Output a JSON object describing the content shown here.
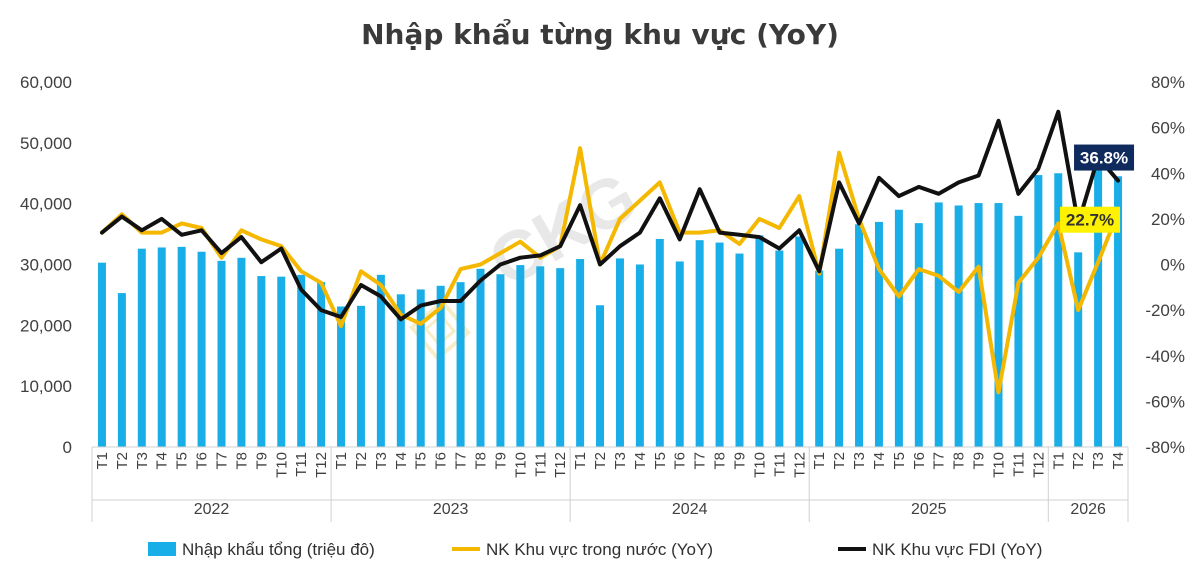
{
  "chart_data": {
    "type": "bar+line",
    "title": "Nhập khẩu từng khu vực (YoY)",
    "categories": [
      "T1",
      "T2",
      "T3",
      "T4",
      "T5",
      "T6",
      "T7",
      "T8",
      "T9",
      "T10",
      "T11",
      "T12",
      "T1",
      "T2",
      "T3",
      "T4",
      "T5",
      "T6",
      "T7",
      "T8",
      "T9",
      "T10",
      "T11",
      "T12",
      "T1",
      "T2",
      "T3",
      "T4",
      "T5",
      "T6",
      "T7",
      "T8",
      "T9",
      "T10",
      "T11",
      "T12",
      "T1",
      "T2",
      "T3",
      "T4",
      "T5",
      "T6",
      "T7",
      "T8",
      "T9",
      "T10",
      "T11",
      "T12",
      "T1",
      "T2",
      "T3",
      "T4"
    ],
    "groups": [
      {
        "label": "2022",
        "count": 12
      },
      {
        "label": "2023",
        "count": 12
      },
      {
        "label": "2024",
        "count": 12
      },
      {
        "label": "2025",
        "count": 12
      },
      {
        "label": "2026",
        "count": 4
      }
    ],
    "y_left": {
      "min": 0,
      "max": 60000,
      "step": 10000,
      "ticks": [
        "0",
        "10,000",
        "20,000",
        "30,000",
        "40,000",
        "50,000",
        "60,000"
      ]
    },
    "y_right": {
      "min": -80,
      "max": 80,
      "step": 20,
      "ticks": [
        "-80%",
        "-60%",
        "-40%",
        "-20%",
        "0%",
        "20%",
        "40%",
        "60%",
        "80%"
      ]
    },
    "series": [
      {
        "name": "Nhập khẩu tổng (triệu đô)",
        "type": "bar",
        "axis": "left",
        "color": "#1aaee8",
        "values": [
          30300,
          25300,
          32600,
          32800,
          32900,
          32100,
          30600,
          31100,
          28100,
          28000,
          28300,
          27100,
          23100,
          23200,
          28300,
          25100,
          25900,
          26500,
          27100,
          29300,
          28400,
          29900,
          29700,
          29400,
          30900,
          23300,
          31000,
          30000,
          34200,
          30500,
          34000,
          33600,
          31800,
          34800,
          32300,
          34600,
          29000,
          32600,
          36600,
          37000,
          39000,
          36800,
          40200,
          39700,
          40100,
          40100,
          38000,
          44700,
          45000,
          32000,
          46000,
          44500
        ]
      },
      {
        "name": "NK Khu vực trong nước (YoY)",
        "type": "line",
        "axis": "right",
        "color": "#f5b800",
        "values": [
          14,
          22,
          14,
          14,
          18,
          16,
          3,
          15,
          11,
          8,
          -3,
          -8,
          -27,
          -3,
          -9,
          -22,
          -26,
          -19,
          -2,
          0,
          5,
          10,
          3,
          8,
          51,
          0,
          20,
          28,
          36,
          14,
          14,
          15,
          9,
          20,
          16,
          30,
          -4,
          49,
          20,
          -2,
          -14,
          -2,
          -5,
          -12,
          -1,
          -56,
          -8,
          3,
          18,
          -20,
          1,
          22.7
        ]
      },
      {
        "name": "NK Khu vực FDI (YoY)",
        "type": "line",
        "axis": "right",
        "color": "#111111",
        "values": [
          14,
          21,
          15,
          20,
          13,
          15,
          5,
          12,
          1,
          7,
          -11,
          -20,
          -23,
          -9,
          -14,
          -24,
          -18,
          -16,
          -16,
          -7,
          0,
          3,
          4,
          8,
          26,
          0,
          8,
          14,
          29,
          11,
          33,
          14,
          13,
          12,
          7,
          15,
          -3,
          36,
          18,
          38,
          30,
          34,
          31,
          36,
          39,
          63,
          31,
          42,
          67,
          18,
          47,
          36.8
        ]
      }
    ],
    "data_labels": [
      {
        "series": 1,
        "index": 51,
        "text": "22.7%"
      },
      {
        "series": 2,
        "index": 51,
        "text": "36.8%"
      }
    ],
    "watermark": "CKG",
    "legend_position": "bottom",
    "grid": false
  }
}
